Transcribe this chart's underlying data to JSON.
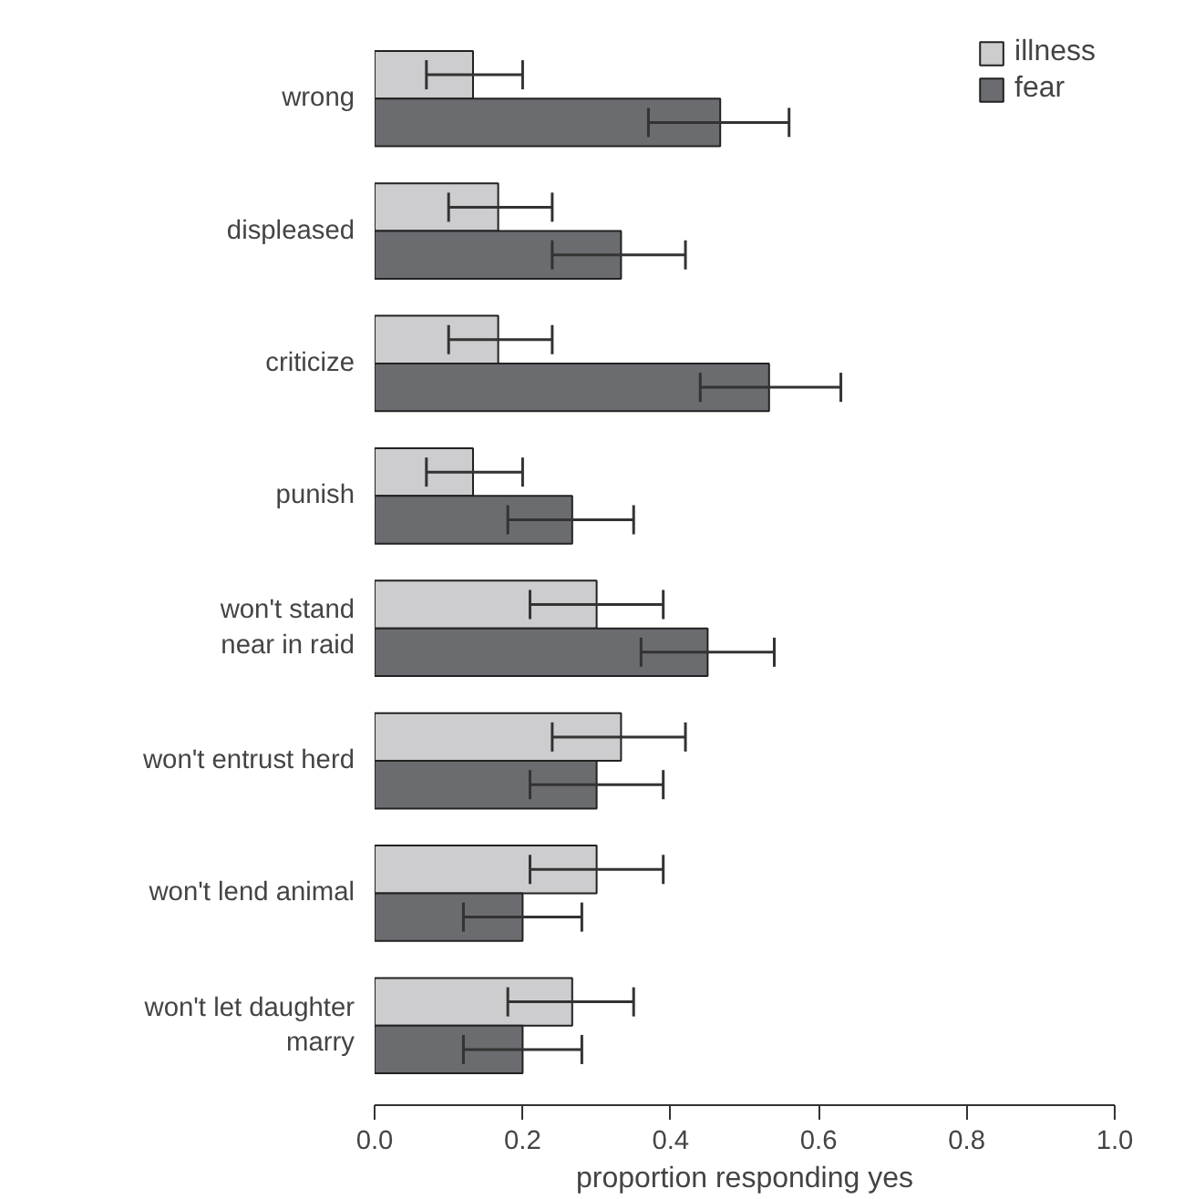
{
  "chart_data": {
    "type": "bar",
    "orientation": "horizontal",
    "xlabel": "proportion responding yes",
    "categories": [
      "wrong",
      "displeased",
      "criticize",
      "punish",
      "won't stand\nnear in raid",
      "won't entrust herd",
      "won't lend animal",
      "won't let daughter\nmarry"
    ],
    "series": [
      {
        "name": "illness",
        "color": "#cdcdcf",
        "values": [
          0.133,
          0.167,
          0.167,
          0.133,
          0.3,
          0.333,
          0.3,
          0.267
        ],
        "errors": [
          [
            0.07,
            0.2
          ],
          [
            0.1,
            0.24
          ],
          [
            0.1,
            0.24
          ],
          [
            0.07,
            0.2
          ],
          [
            0.21,
            0.39
          ],
          [
            0.24,
            0.42
          ],
          [
            0.21,
            0.39
          ],
          [
            0.18,
            0.35
          ]
        ]
      },
      {
        "name": "fear",
        "color": "#6b6c70",
        "values": [
          0.467,
          0.333,
          0.533,
          0.267,
          0.45,
          0.3,
          0.2,
          0.2
        ],
        "errors": [
          [
            0.37,
            0.56
          ],
          [
            0.24,
            0.42
          ],
          [
            0.44,
            0.63
          ],
          [
            0.18,
            0.35
          ],
          [
            0.36,
            0.54
          ],
          [
            0.21,
            0.39
          ],
          [
            0.12,
            0.28
          ],
          [
            0.12,
            0.28
          ]
        ]
      }
    ],
    "xlim": [
      0,
      1
    ],
    "xticks": [
      {
        "value": 0,
        "label": "0.0"
      },
      0.2,
      0.4,
      0.6,
      0.8,
      {
        "value": 1,
        "label": "1.0"
      }
    ],
    "legend": "top right",
    "grid": false
  }
}
